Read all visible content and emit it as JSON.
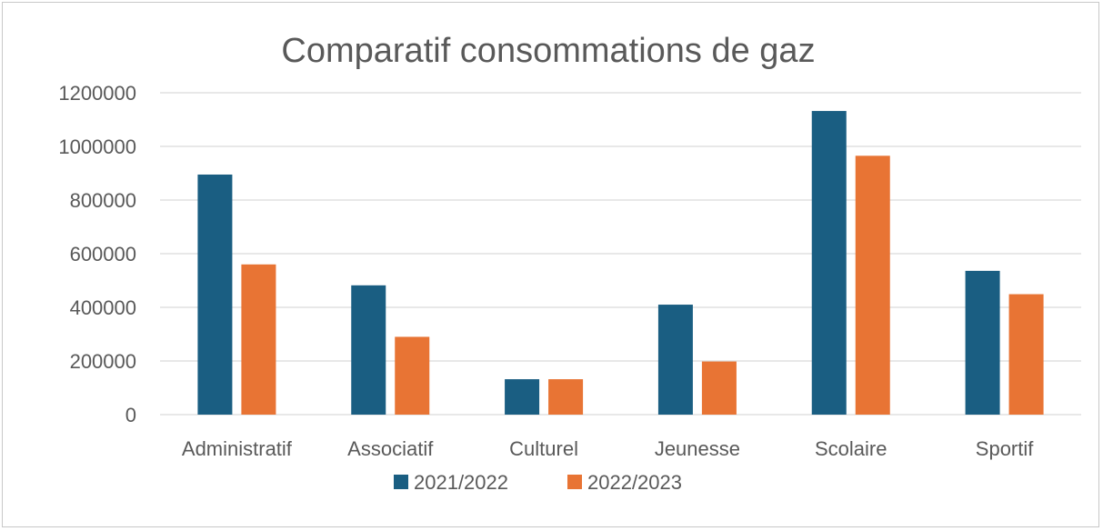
{
  "chart_data": {
    "type": "bar",
    "title": "Comparatif consommations de gaz",
    "xlabel": "",
    "ylabel": "",
    "ylim": [
      0,
      1200000
    ],
    "yticks": [
      "0",
      "200000",
      "400000",
      "600000",
      "800000",
      "1000000",
      "1200000"
    ],
    "grid": true,
    "legend_position": "bottom",
    "categories": [
      "Administratif",
      "Associatif",
      "Culturel",
      "Jeunesse",
      "Scolaire",
      "Sportif"
    ],
    "series": [
      {
        "name": "2021/2022",
        "color": "#1a5e82",
        "values": [
          895000,
          482000,
          132000,
          410000,
          1132000,
          536000
        ]
      },
      {
        "name": "2022/2023",
        "color": "#e87434",
        "values": [
          560000,
          290000,
          132000,
          198000,
          965000,
          449000
        ]
      }
    ]
  }
}
